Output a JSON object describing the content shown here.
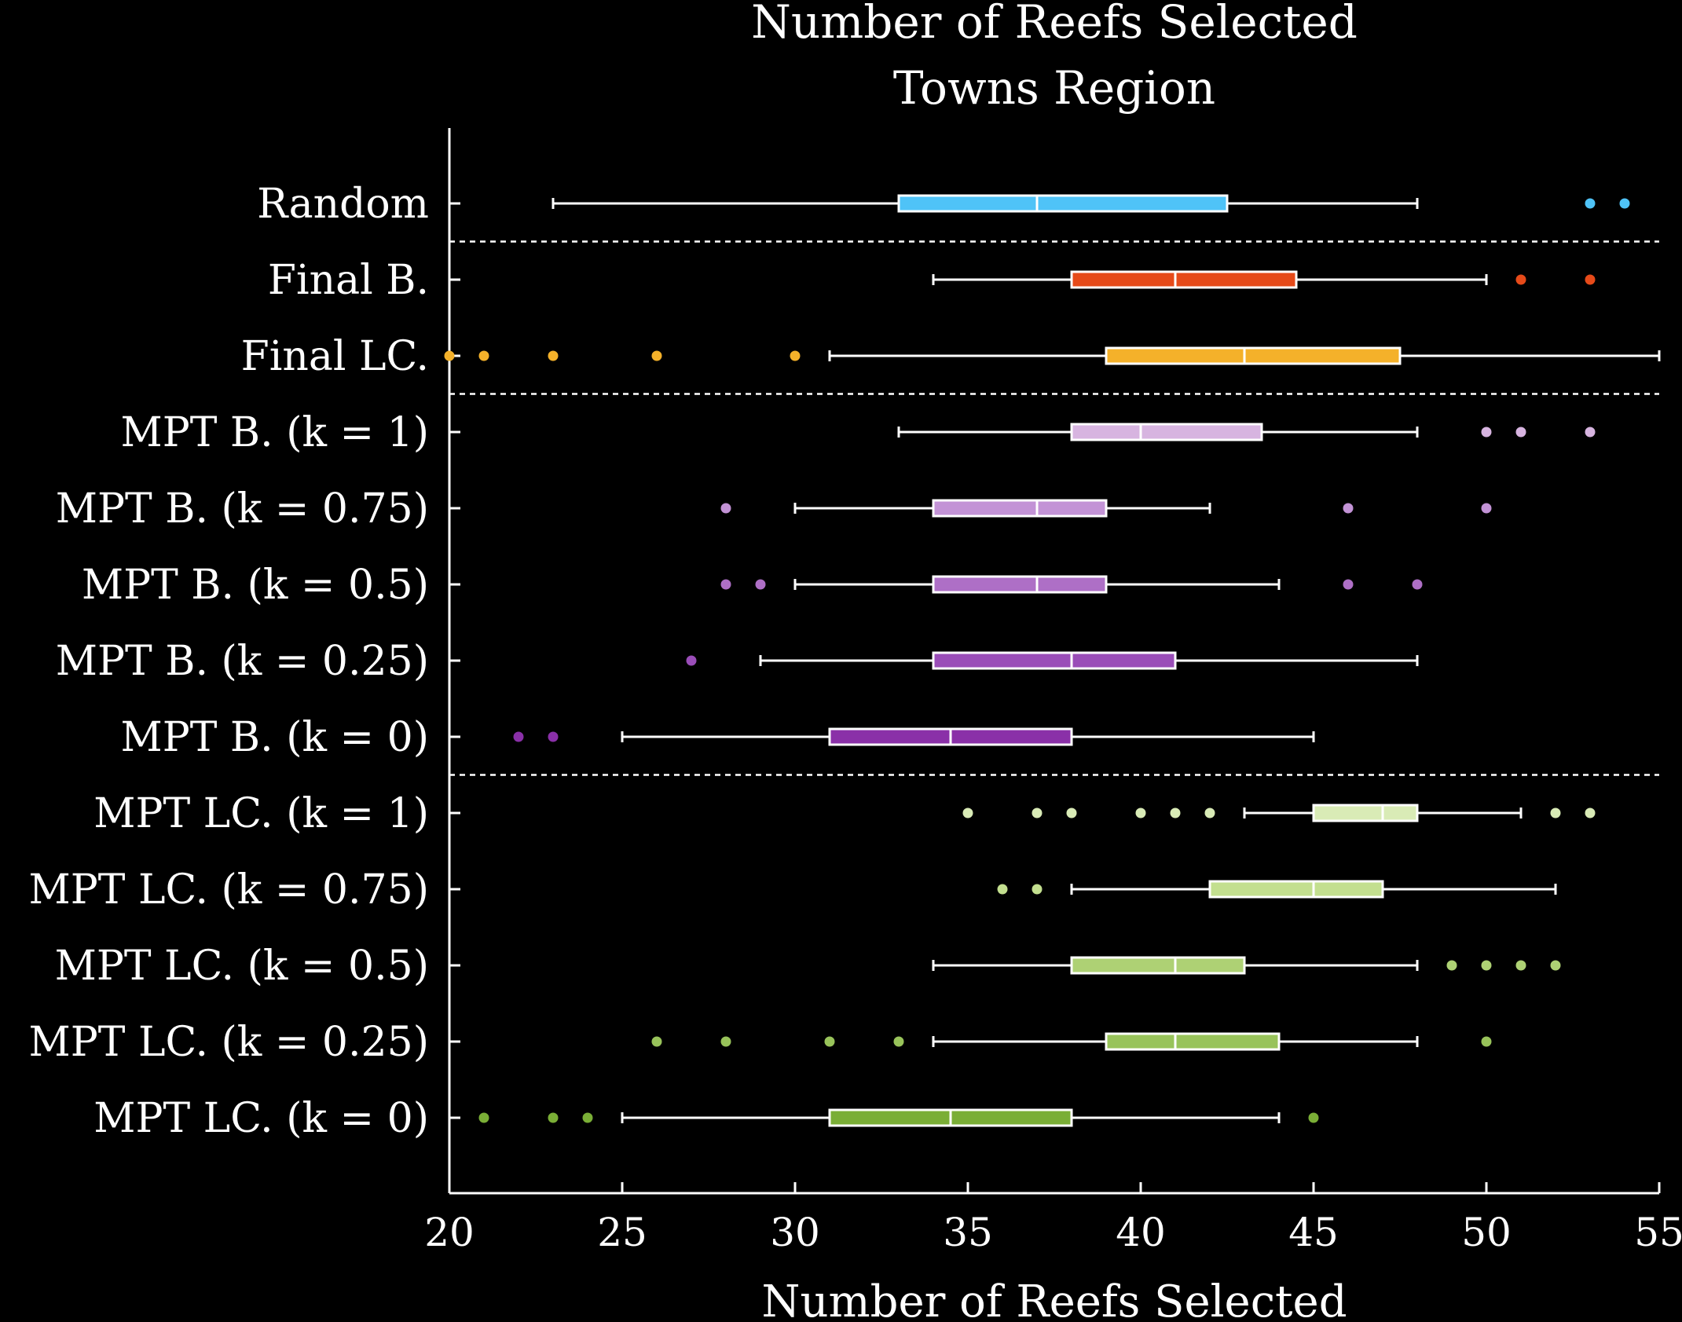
{
  "chart_data": {
    "type": "boxplot",
    "orientation": "horizontal",
    "title": [
      "Number of Reefs Selected",
      "Towns Region"
    ],
    "xlabel": "Number of Reefs Selected",
    "xlim": [
      20,
      55
    ],
    "xticks": [
      20,
      25,
      30,
      35,
      40,
      45,
      50,
      55
    ],
    "grid": false,
    "separators_after": [
      "Random",
      "Final LC.",
      "MPT B. (k = 0)"
    ],
    "categories": [
      {
        "label": "Random",
        "color": "#4fc3f7",
        "whisker_low": 23,
        "q1": 33,
        "median": 37,
        "q3": 42.5,
        "whisker_high": 48,
        "outliers": [
          53,
          54
        ]
      },
      {
        "label": "Final B.",
        "color": "#e64a19",
        "whisker_low": 34,
        "q1": 38,
        "median": 41,
        "q3": 44.5,
        "whisker_high": 50,
        "outliers": [
          51,
          53
        ]
      },
      {
        "label": "Final LC.",
        "color": "#f4b12a",
        "whisker_low": 31,
        "q1": 39,
        "median": 43,
        "q3": 47.5,
        "whisker_high": 55,
        "outliers": [
          20,
          21,
          23,
          26,
          30
        ]
      },
      {
        "label": "MPT B. (k = 1)",
        "color": "#d7b4e0",
        "whisker_low": 33,
        "q1": 38,
        "median": 40,
        "q3": 43.5,
        "whisker_high": 48,
        "outliers": [
          50,
          51,
          53
        ]
      },
      {
        "label": "MPT B. (k = 0.75)",
        "color": "#c393d6",
        "whisker_low": 30,
        "q1": 34,
        "median": 37,
        "q3": 39,
        "whisker_high": 42,
        "outliers": [
          28,
          46,
          50
        ]
      },
      {
        "label": "MPT B. (k = 0.5)",
        "color": "#ae6fc6",
        "whisker_low": 30,
        "q1": 34,
        "median": 37,
        "q3": 39,
        "whisker_high": 44,
        "outliers": [
          28,
          29,
          46,
          48
        ]
      },
      {
        "label": "MPT B. (k = 0.25)",
        "color": "#9a4db8",
        "whisker_low": 29,
        "q1": 34,
        "median": 38,
        "q3": 41,
        "whisker_high": 48,
        "outliers": [
          27
        ]
      },
      {
        "label": "MPT B. (k = 0)",
        "color": "#8a30a8",
        "whisker_low": 25,
        "q1": 31,
        "median": 34.5,
        "q3": 38,
        "whisker_high": 45,
        "outliers": [
          22,
          23
        ]
      },
      {
        "label": "MPT LC. (k = 1)",
        "color": "#d9ebb6",
        "whisker_low": 43,
        "q1": 45,
        "median": 47,
        "q3": 48,
        "whisker_high": 51,
        "outliers": [
          35,
          37,
          38,
          40,
          41,
          42,
          52,
          53
        ]
      },
      {
        "label": "MPT LC. (k = 0.75)",
        "color": "#c3df8f",
        "whisker_low": 38,
        "q1": 42,
        "median": 45,
        "q3": 47,
        "whisker_high": 52,
        "outliers": [
          36,
          37
        ]
      },
      {
        "label": "MPT LC. (k = 0.5)",
        "color": "#aed174",
        "whisker_low": 34,
        "q1": 38,
        "median": 41,
        "q3": 43,
        "whisker_high": 48,
        "outliers": [
          49,
          50,
          51,
          52
        ]
      },
      {
        "label": "MPT LC. (k = 0.25)",
        "color": "#98c35a",
        "whisker_low": 34,
        "q1": 39,
        "median": 41,
        "q3": 44,
        "whisker_high": 48,
        "outliers": [
          26,
          28,
          31,
          33,
          50
        ]
      },
      {
        "label": "MPT LC. (k = 0)",
        "color": "#7aae36",
        "whisker_low": 25,
        "q1": 31,
        "median": 34.5,
        "q3": 38,
        "whisker_high": 44,
        "outliers": [
          21,
          23,
          24,
          45
        ]
      }
    ]
  }
}
